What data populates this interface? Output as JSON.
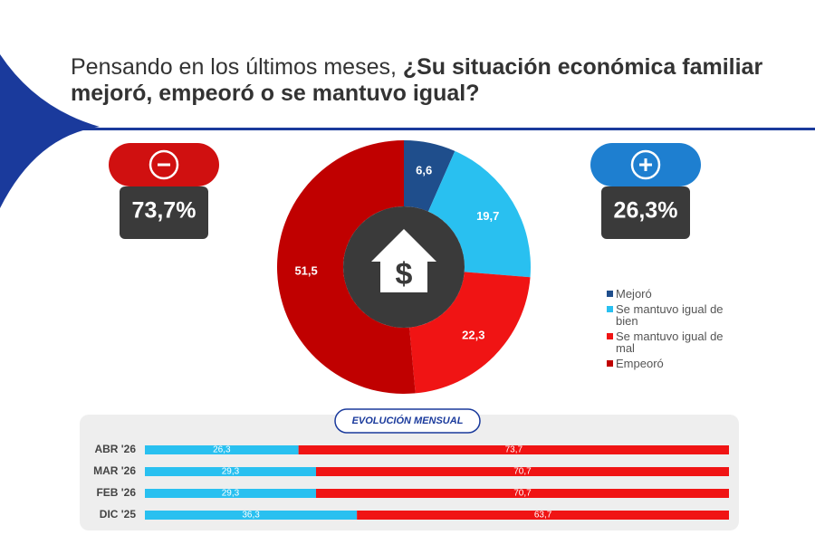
{
  "header": {
    "lead": "Pensando en los últimos meses, ",
    "title": "¿Su situación económica familiar mejoró, empeoró o se mantuvo igual?"
  },
  "chart_data": [
    {
      "type": "donut",
      "negative_total": "73,7%",
      "positive_total": "26,3%",
      "categories": [
        "Mejoró",
        "Se mantuvo igual de bien",
        "Se mantuvo igual de mal",
        "Empeoró"
      ],
      "values": [
        6.6,
        19.7,
        22.3,
        51.5
      ],
      "value_labels": [
        "6,6",
        "19,7",
        "22,3",
        "51,5"
      ],
      "colors": [
        "#1f4e8c",
        "#29c0f0",
        "#f01414",
        "#c00000"
      ]
    },
    {
      "type": "bar",
      "orientation": "horizontal",
      "stacked": true,
      "title": "EVOLUCIÓN MENSUAL",
      "categories": [
        "ABR '26",
        "MAR '26",
        "FEB '26",
        "DIC '25"
      ],
      "xlim": [
        0,
        100
      ],
      "series": [
        {
          "color": "#29c0f0",
          "values": [
            26.3,
            29.3,
            29.3,
            36.3
          ],
          "value_labels": [
            "26,3",
            "29,3",
            "29,3",
            "36,3"
          ]
        },
        {
          "color": "#f01414",
          "values": [
            73.7,
            70.7,
            70.7,
            63.7
          ],
          "value_labels": [
            "73,7",
            "70,7",
            "70,7",
            "63,7"
          ]
        }
      ]
    }
  ]
}
